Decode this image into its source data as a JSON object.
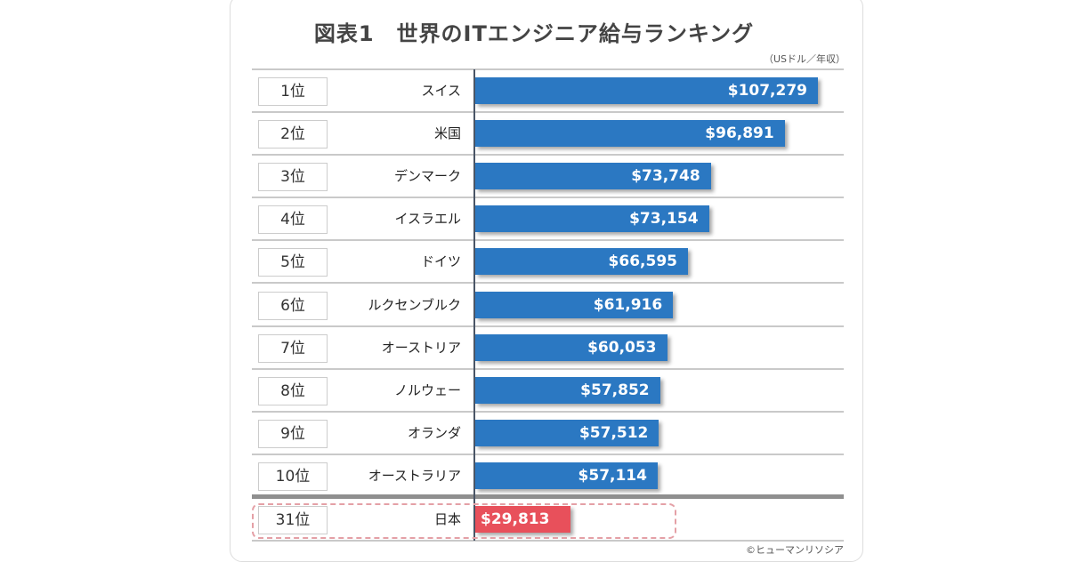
{
  "chart_data": {
    "type": "bar",
    "orientation": "horizontal",
    "title": "図表1　世界のITエンジニア給与ランキング",
    "unit": "（USドル／年収）",
    "credit": "©ヒューマンリソシア",
    "ranks": [
      "1位",
      "2位",
      "3位",
      "4位",
      "5位",
      "6位",
      "7位",
      "8位",
      "9位",
      "10位",
      "31位"
    ],
    "categories": [
      "スイス",
      "米国",
      "デンマーク",
      "イスラエル",
      "ドイツ",
      "ルクセンブルク",
      "オーストリア",
      "ノルウェー",
      "オランダ",
      "オーストラリア",
      "日本"
    ],
    "values": [
      107279,
      96891,
      73748,
      73154,
      66595,
      61916,
      60053,
      57852,
      57512,
      57114,
      29813
    ],
    "labels": [
      "$107,279",
      "$96,891",
      "$73,748",
      "$73,154",
      "$66,595",
      "$61,916",
      "$60,053",
      "$57,852",
      "$57,512",
      "$57,114",
      "$29,813"
    ],
    "highlight": "日本",
    "colors": {
      "bar": "#2b78c2",
      "highlight": "#e8505b"
    }
  }
}
